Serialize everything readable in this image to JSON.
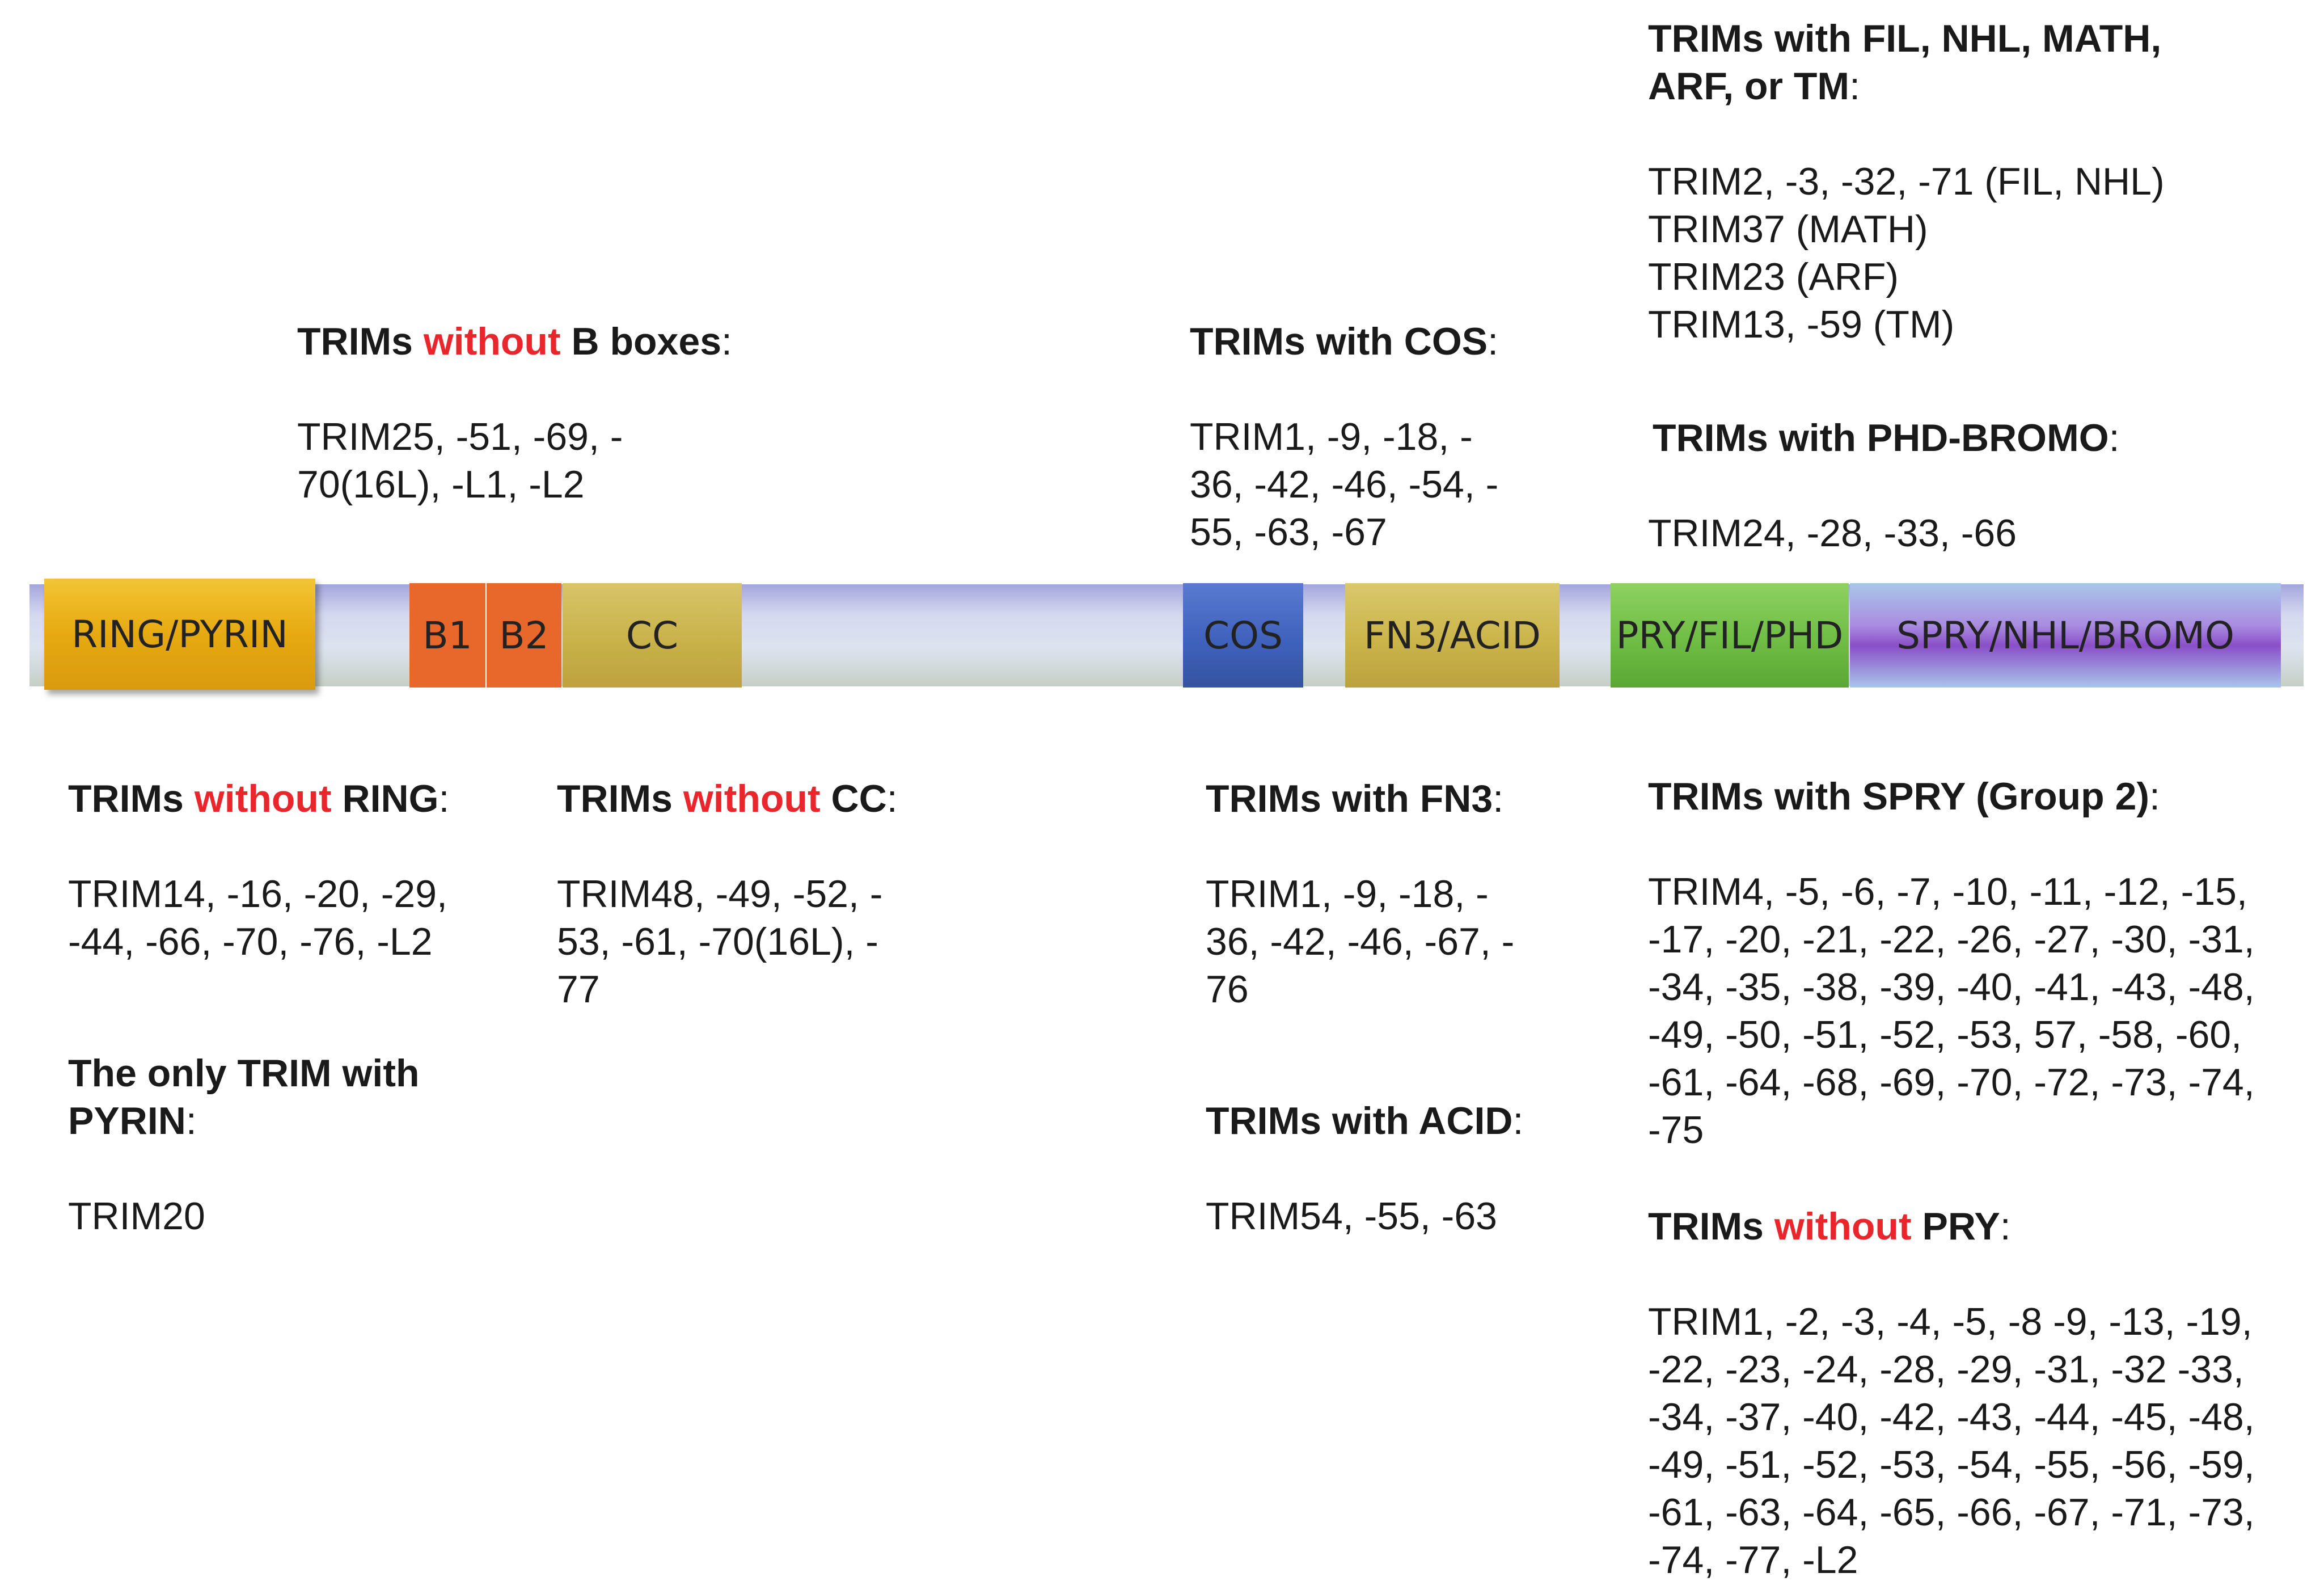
{
  "domains": {
    "ring": "RING/PYRIN",
    "b1": "B1",
    "b2": "B2",
    "cc": "CC",
    "cos": "COS",
    "fn3": "FN3/ACID",
    "pry": "PRY/FIL/PHD",
    "spry": "SPRY/NHL/BROMO"
  },
  "colors": {
    "ring": "#e6a911",
    "box": "#e8682c",
    "cc": "#c9b24a",
    "cos": "#3f62bd",
    "fn3": "#cbb44a",
    "pry": "#6fbd44",
    "spry": "#8a4fc8",
    "highlight": "#e8262b"
  },
  "annotations": {
    "without_b": {
      "h1": "TRIMs ",
      "h2": "without",
      "h3": " B boxes",
      "h4": ":",
      "lines": [
        "TRIM25, -51, -69, -",
        "70(16L), -L1, -L2"
      ]
    },
    "with_cos": {
      "h1": "TRIMs with COS",
      "h4": ":",
      "lines": [
        "TRIM1, -9, -18, -",
        "36, -42, -46, -54, -",
        "55, -63, -67"
      ]
    },
    "with_fil": {
      "h_line1": "TRIMs with FIL, NHL, MATH,",
      "h_line2": "ARF, or TM",
      "h4": ":",
      "lines": [
        "TRIM2, -3, -32, -71 (FIL, NHL)",
        "TRIM37 (MATH)",
        "TRIM23 (ARF)",
        "TRIM13, -59 (TM)"
      ]
    },
    "with_phd": {
      "h1": "TRIMs with PHD-BROMO",
      "h4": ":",
      "lines": [
        "TRIM24, -28, -33, -66"
      ]
    },
    "without_ring": {
      "h1": "TRIMs ",
      "h2": "without",
      "h3": " RING",
      "h4": ":",
      "lines": [
        "TRIM14, -16, -20, -29,",
        "-44, -66, -70, -76, -L2"
      ]
    },
    "only_pyrin": {
      "h_line1": "The only TRIM with",
      "h_line2": "PYRIN",
      "h4": ":",
      "lines": [
        "TRIM20"
      ]
    },
    "without_cc": {
      "h1": "TRIMs ",
      "h2": "without",
      "h3": " CC",
      "h4": ":",
      "lines": [
        "TRIM48, -49, -52, -",
        "53, -61, -70(16L), -",
        "77"
      ]
    },
    "with_fn3": {
      "h1": "TRIMs with FN3",
      "h4": ":",
      "lines": [
        "TRIM1, -9, -18, -",
        "36, -42, -46, -67, -",
        "76"
      ]
    },
    "with_acid": {
      "h1": "TRIMs with ACID",
      "h4": ":",
      "lines": [
        "TRIM54, -55, -63"
      ]
    },
    "with_spry": {
      "h1": "TRIMs with SPRY (Group 2)",
      "h4": ":",
      "lines": [
        "TRIM4, -5, -6, -7, -10, -11, -12, -15,",
        "-17, -20, -21, -22, -26, -27, -30, -31,",
        "-34, -35, -38, -39, -40, -41, -43, -48,",
        "-49, -50, -51, -52, -53, 57, -58, -60,",
        "-61, -64, -68, -69, -70, -72, -73, -74,",
        "-75"
      ]
    },
    "without_pry": {
      "h1": "TRIMs ",
      "h2": "without",
      "h3": " PRY",
      "h4": ":",
      "lines": [
        "TRIM1, -2, -3, -4, -5, -8 -9, -13, -19,",
        "-22, -23, -24, -28, -29, -31, -32 -33,",
        "-34, -37, -40, -42, -43, -44, -45, -48,",
        "-49, -51, -52, -53, -54, -55, -56, -59,",
        "-61, -63, -64, -65, -66, -67, -71, -73,",
        "-74, -77, -L2"
      ]
    }
  }
}
